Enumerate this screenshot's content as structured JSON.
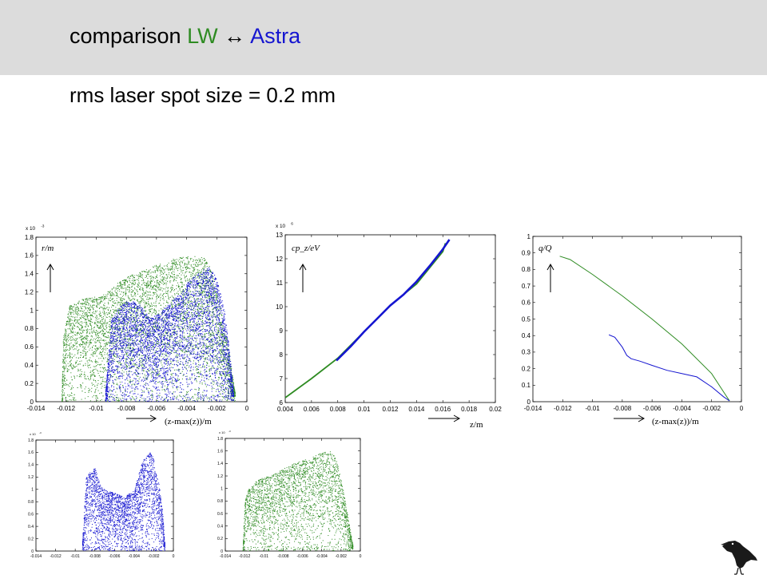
{
  "slide": {
    "title_lead": "comparison",
    "title_lw": "LW",
    "title_arrow": "↔",
    "title_astra": "Astra",
    "subtitle": "rms laser spot size = 0.2 mm"
  },
  "colors": {
    "header_bg": "#dcdcdc",
    "lw": "#2e8b22",
    "astra": "#1515d0"
  },
  "icons": {
    "logo": "crow-icon"
  },
  "chart_data": [
    {
      "id": "radial",
      "type": "scatter",
      "title": "",
      "xlabel": "(z-max(z))/m",
      "ylabel": "r/m",
      "y_exponent": "x 10",
      "y_exponent_power": "-3",
      "xlim": [
        -0.014,
        0
      ],
      "ylim": [
        0,
        1.8
      ],
      "xticks": [
        "-0.014",
        "-0.012",
        "-0.01",
        "-0.008",
        "-0.006",
        "-0.004",
        "-0.002",
        "0"
      ],
      "yticks": [
        "0",
        "0.2",
        "0.4",
        "0.6",
        "0.8",
        "1",
        "1.2",
        "1.4",
        "1.6",
        "1.8"
      ],
      "series": [
        {
          "color": "#2e8b22",
          "envelope_x": [
            -0.0123,
            -0.0122,
            -0.0118,
            -0.011,
            -0.0104,
            -0.0098,
            -0.0092,
            -0.0086,
            -0.008,
            -0.0072,
            -0.006,
            -0.005,
            -0.004,
            -0.0034,
            -0.0028,
            -0.0024,
            -0.002,
            -0.0016,
            -0.0012,
            -0.0008
          ],
          "envelope_y": [
            0.05,
            0.7,
            1.05,
            1.12,
            1.15,
            1.15,
            1.22,
            1.3,
            1.37,
            1.42,
            1.5,
            1.56,
            1.6,
            1.6,
            1.57,
            1.45,
            1.25,
            0.9,
            0.55,
            0.1
          ]
        },
        {
          "color": "#1515d0",
          "envelope_x": [
            -0.0094,
            -0.009,
            -0.0086,
            -0.008,
            -0.0075,
            -0.007,
            -0.0065,
            -0.006,
            -0.005,
            -0.004,
            -0.003,
            -0.0025,
            -0.002,
            -0.0015,
            -0.0012,
            -0.0009
          ],
          "envelope_y": [
            0.1,
            0.9,
            1.02,
            1.1,
            1.1,
            1.05,
            0.92,
            0.95,
            1.1,
            1.3,
            1.45,
            1.47,
            1.35,
            1.0,
            0.6,
            0.1
          ]
        }
      ]
    },
    {
      "id": "energy",
      "type": "line",
      "title": "",
      "xlabel": "z/m",
      "ylabel": "cp_z/eV",
      "y_exponent": "x 10",
      "y_exponent_power": "6",
      "xlim": [
        0.004,
        0.02
      ],
      "ylim": [
        6,
        13
      ],
      "xticks": [
        "0.004",
        "0.006",
        "0.008",
        "0.01",
        "0.012",
        "0.014",
        "0.016",
        "0.018",
        "0.02"
      ],
      "yticks": [
        "6",
        "7",
        "8",
        "9",
        "10",
        "11",
        "12",
        "13"
      ],
      "series": [
        {
          "color": "#2e8b22",
          "x": [
            0.004,
            0.006,
            0.008,
            0.01,
            0.012,
            0.014,
            0.016,
            0.0162
          ],
          "y": [
            6.2,
            7.0,
            7.85,
            8.95,
            10.05,
            10.95,
            12.3,
            12.65
          ]
        },
        {
          "color": "#1515d0",
          "x": [
            0.0079,
            0.009,
            0.01,
            0.011,
            0.012,
            0.013,
            0.014,
            0.015,
            0.016,
            0.0165
          ],
          "y": [
            7.75,
            8.35,
            8.95,
            9.5,
            10.05,
            10.5,
            11.05,
            11.7,
            12.4,
            12.8
          ]
        }
      ]
    },
    {
      "id": "charge",
      "type": "line",
      "title": "",
      "xlabel": "(z-max(z))/m",
      "ylabel": "q/Q",
      "xlim": [
        -0.014,
        0
      ],
      "ylim": [
        0,
        1
      ],
      "xticks": [
        "-0.014",
        "-0.012",
        "-0.01",
        "-0.008",
        "-0.006",
        "-0.004",
        "-0.002",
        "0"
      ],
      "yticks": [
        "0",
        "0.1",
        "0.2",
        "0.3",
        "0.4",
        "0.5",
        "0.6",
        "0.7",
        "0.8",
        "0.9",
        "1"
      ],
      "series": [
        {
          "color": "#2e8b22",
          "x": [
            -0.0122,
            -0.0115,
            -0.01,
            -0.008,
            -0.006,
            -0.004,
            -0.002,
            -0.0012,
            -0.0008
          ],
          "y": [
            0.88,
            0.86,
            0.77,
            0.64,
            0.5,
            0.35,
            0.17,
            0.06,
            0.005
          ]
        },
        {
          "color": "#1515d0",
          "x": [
            -0.0089,
            -0.0085,
            -0.008,
            -0.0077,
            -0.0074,
            -0.0068,
            -0.006,
            -0.005,
            -0.004,
            -0.003,
            -0.002,
            -0.0012,
            -0.0008
          ],
          "y": [
            0.405,
            0.39,
            0.33,
            0.28,
            0.26,
            0.245,
            0.22,
            0.19,
            0.17,
            0.15,
            0.09,
            0.03,
            0.005
          ]
        }
      ]
    },
    {
      "id": "radial-astra",
      "type": "scatter",
      "title": "",
      "xlabel": "",
      "ylabel": "",
      "y_exponent": "x 10",
      "y_exponent_power": "-3",
      "xlim": [
        -0.014,
        0
      ],
      "ylim": [
        0,
        1.8
      ],
      "xticks": [
        "-0.014",
        "-0.012",
        "-0.01",
        "-0.008",
        "-0.006",
        "-0.004",
        "-0.002",
        "0"
      ],
      "yticks": [
        "0",
        "0.2",
        "0.4",
        "0.6",
        "0.8",
        "1",
        "1.2",
        "1.4",
        "1.6",
        "1.8"
      ],
      "series": [
        {
          "color": "#1515d0",
          "envelope_x": [
            -0.0093,
            -0.0089,
            -0.0085,
            -0.008,
            -0.0074,
            -0.0068,
            -0.006,
            -0.005,
            -0.004,
            -0.0033,
            -0.0028,
            -0.0024,
            -0.002,
            -0.0015,
            -0.0011,
            -0.0009
          ],
          "envelope_y": [
            0.1,
            1.2,
            1.3,
            1.35,
            1.05,
            0.98,
            0.95,
            0.88,
            1.0,
            1.4,
            1.58,
            1.6,
            1.5,
            1.1,
            0.6,
            0.1
          ]
        }
      ]
    },
    {
      "id": "radial-lw",
      "type": "scatter",
      "title": "",
      "xlabel": "",
      "ylabel": "",
      "y_exponent": "x 10",
      "y_exponent_power": "-3",
      "xlim": [
        -0.014,
        0
      ],
      "ylim": [
        0,
        1.8
      ],
      "xticks": [
        "-0.014",
        "-0.012",
        "-0.01",
        "-0.008",
        "-0.006",
        "-0.004",
        "-0.002",
        "0"
      ],
      "yticks": [
        "0",
        "0.2",
        "0.4",
        "0.6",
        "0.8",
        "1",
        "1.2",
        "1.4",
        "1.6",
        "1.8"
      ],
      "series": [
        {
          "color": "#2e8b22",
          "envelope_x": [
            -0.0122,
            -0.012,
            -0.0116,
            -0.011,
            -0.0102,
            -0.0092,
            -0.008,
            -0.007,
            -0.006,
            -0.005,
            -0.004,
            -0.0032,
            -0.0028,
            -0.0024,
            -0.002,
            -0.0016,
            -0.0012,
            -0.0008
          ],
          "envelope_y": [
            0.05,
            0.8,
            1.0,
            1.1,
            1.18,
            1.22,
            1.32,
            1.4,
            1.45,
            1.52,
            1.58,
            1.6,
            1.55,
            1.4,
            1.15,
            0.8,
            0.45,
            0.1
          ]
        }
      ]
    }
  ]
}
